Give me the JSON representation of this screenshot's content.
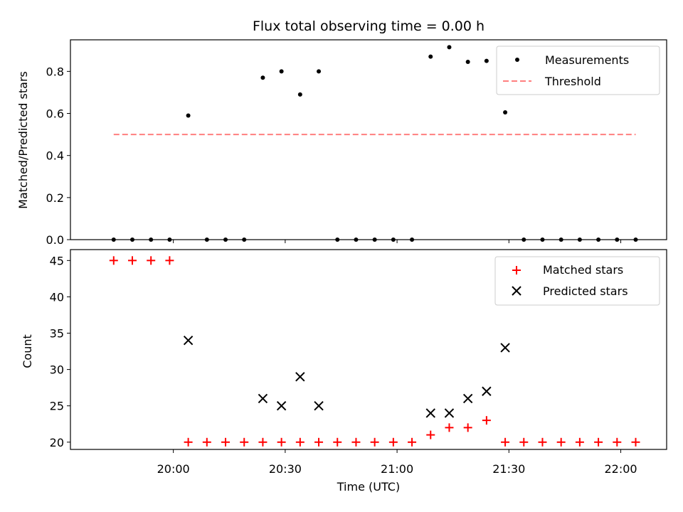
{
  "chart_data": [
    {
      "type": "scatter",
      "title": "Flux total observing time = 0.00 h",
      "xlabel": "",
      "ylabel": "Matched/Predicted stars",
      "ylim": [
        0,
        0.95
      ],
      "yticks": [
        0.0,
        0.2,
        0.4,
        0.6,
        0.8
      ],
      "ytick_labels": [
        "0.0",
        "0.2",
        "0.4",
        "0.6",
        "0.8"
      ],
      "x": [
        "19:44",
        "19:49",
        "19:54",
        "19:59",
        "20:04",
        "20:09",
        "20:14",
        "20:19",
        "20:24",
        "20:29",
        "20:34",
        "20:39",
        "20:44",
        "20:49",
        "20:54",
        "20:59",
        "21:04",
        "21:09",
        "21:14",
        "21:19",
        "21:24",
        "21:29",
        "21:34",
        "21:39",
        "21:44",
        "21:49",
        "21:54",
        "21:59",
        "22:04"
      ],
      "series": [
        {
          "name": "Measurements",
          "color": "#000000",
          "marker": "dot",
          "values": [
            0,
            0,
            0,
            0,
            0.59,
            0,
            0,
            0,
            0.77,
            0.8,
            0.69,
            0.8,
            0,
            0,
            0,
            0,
            0,
            0.87,
            0.915,
            0.845,
            0.85,
            0.605,
            0,
            0,
            0,
            0,
            0,
            0,
            0
          ]
        },
        {
          "name": "Threshold",
          "color": "#ff7f7f",
          "style": "dashed",
          "x": [
            "19:44",
            "22:04"
          ],
          "values": [
            0.5,
            0.5
          ]
        }
      ],
      "legend": "top-right"
    },
    {
      "type": "scatter",
      "title": "",
      "xlabel": "Time (UTC)",
      "ylabel": "Count",
      "ylim": [
        19,
        46.5
      ],
      "yticks": [
        20,
        25,
        30,
        35,
        40,
        45
      ],
      "ytick_labels": [
        "20",
        "25",
        "30",
        "35",
        "40",
        "45"
      ],
      "xticks": [
        "20:00",
        "20:30",
        "21:00",
        "21:30",
        "22:00"
      ],
      "xtick_labels": [
        "20:00",
        "20:30",
        "21:00",
        "21:30",
        "22:00"
      ],
      "x": [
        "19:44",
        "19:49",
        "19:54",
        "19:59",
        "20:04",
        "20:09",
        "20:14",
        "20:19",
        "20:24",
        "20:29",
        "20:34",
        "20:39",
        "20:44",
        "20:49",
        "20:54",
        "20:59",
        "21:04",
        "21:09",
        "21:14",
        "21:19",
        "21:24",
        "21:29",
        "21:34",
        "21:39",
        "21:44",
        "21:49",
        "21:54",
        "21:59",
        "22:04"
      ],
      "series": [
        {
          "name": "Matched stars",
          "color": "#ff0000",
          "marker": "plus",
          "values": [
            45,
            45,
            45,
            45,
            20,
            20,
            20,
            20,
            20,
            20,
            20,
            20,
            20,
            20,
            20,
            20,
            20,
            21,
            22,
            22,
            23,
            20,
            20,
            20,
            20,
            20,
            20,
            20,
            20
          ]
        },
        {
          "name": "Predicted stars",
          "color": "#000000",
          "marker": "x",
          "values": [
            null,
            null,
            null,
            null,
            34,
            null,
            null,
            null,
            26,
            25,
            29,
            25,
            null,
            null,
            null,
            null,
            null,
            24,
            24,
            26,
            27,
            33,
            null,
            null,
            null,
            null,
            null,
            null,
            null
          ]
        }
      ],
      "legend": "top-right"
    }
  ]
}
